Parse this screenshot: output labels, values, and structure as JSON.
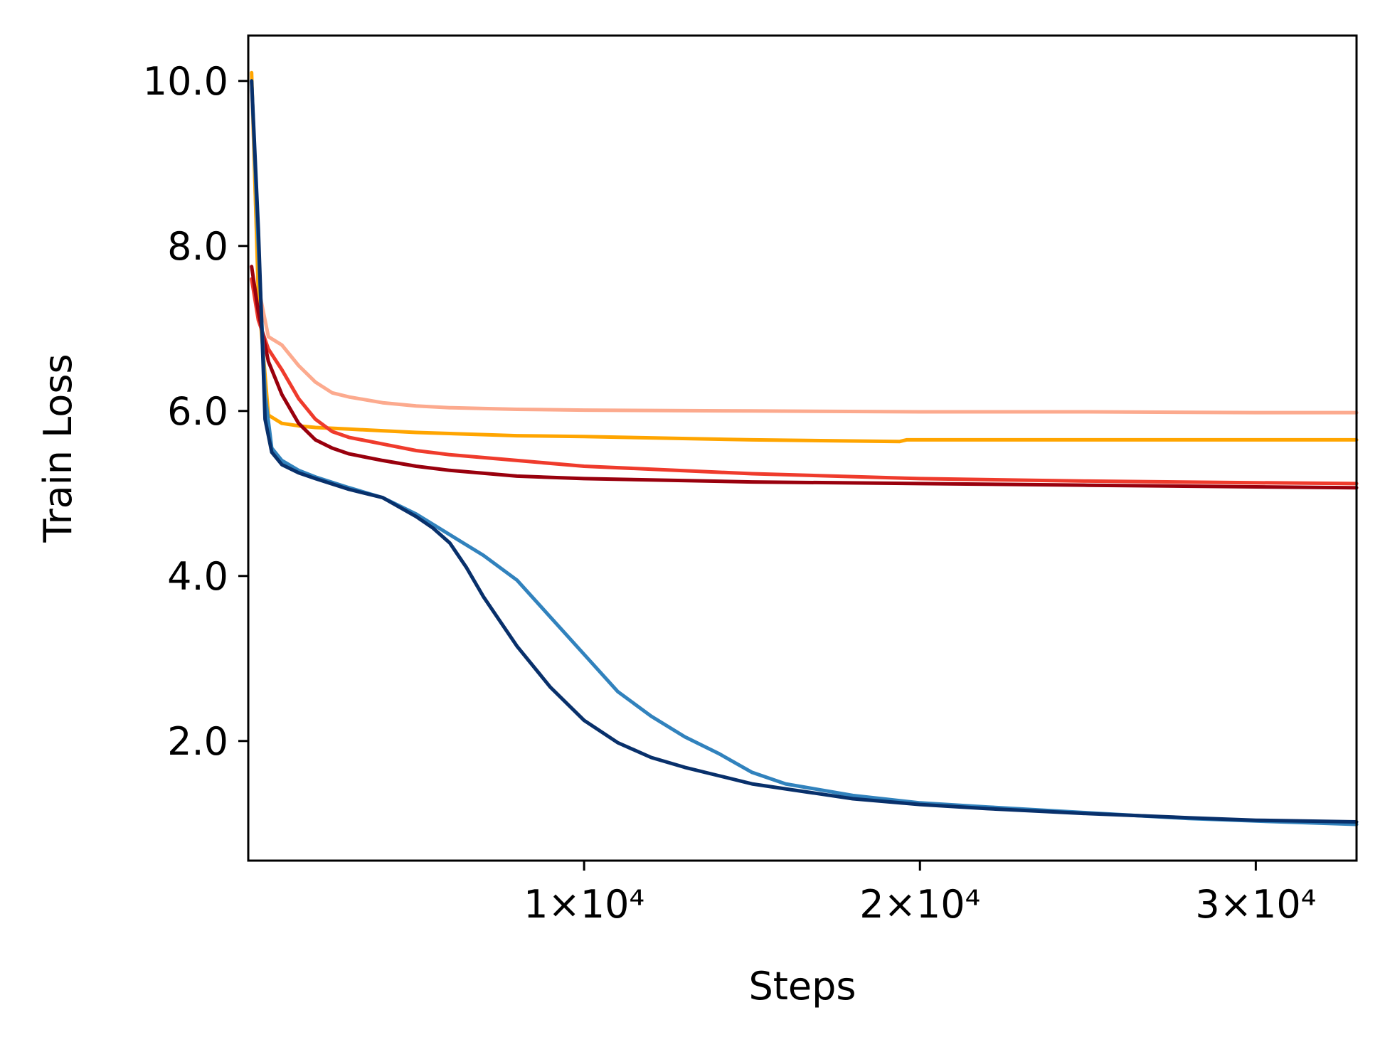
{
  "chart_data": {
    "type": "line",
    "xlabel": "Steps",
    "ylabel": "Train Loss",
    "xlim": [
      0,
      33000
    ],
    "ylim": [
      0.55,
      10.55
    ],
    "xticks": [
      {
        "value": 10000,
        "label": "1×10⁴"
      },
      {
        "value": 20000,
        "label": "2×10⁴"
      },
      {
        "value": 30000,
        "label": "3×10⁴"
      }
    ],
    "yticks": [
      {
        "value": 2.0,
        "label": "2.0"
      },
      {
        "value": 4.0,
        "label": "4.0"
      },
      {
        "value": 6.0,
        "label": "6.0"
      },
      {
        "value": 8.0,
        "label": "8.0"
      },
      {
        "value": 10.0,
        "label": "10.0"
      }
    ],
    "grid": false,
    "legend": "none",
    "series": [
      {
        "color": "#fcaa8e",
        "x": [
          100,
          300,
          600,
          1000,
          1500,
          2000,
          2500,
          3000,
          4000,
          5000,
          6000,
          8000,
          10000,
          15000,
          20000,
          25000,
          30000,
          33000
        ],
        "y": [
          10.0,
          7.5,
          6.9,
          6.8,
          6.55,
          6.35,
          6.22,
          6.17,
          6.1,
          6.06,
          6.04,
          6.02,
          6.01,
          6.0,
          5.99,
          5.99,
          5.98,
          5.98
        ]
      },
      {
        "color": "#ffa500",
        "x": [
          100,
          300,
          600,
          1000,
          1500,
          2000,
          3000,
          5000,
          8000,
          10000,
          15000,
          19400,
          19600,
          25000,
          30000,
          33000
        ],
        "y": [
          10.1,
          7.4,
          5.95,
          5.85,
          5.82,
          5.8,
          5.78,
          5.74,
          5.7,
          5.69,
          5.65,
          5.63,
          5.65,
          5.65,
          5.65,
          5.65
        ]
      },
      {
        "color": "#ef3b2c",
        "x": [
          100,
          300,
          600,
          1000,
          1500,
          2000,
          2500,
          3000,
          4000,
          5000,
          6000,
          8000,
          10000,
          15000,
          20000,
          25000,
          30000,
          33000
        ],
        "y": [
          7.6,
          7.1,
          6.75,
          6.5,
          6.15,
          5.9,
          5.75,
          5.68,
          5.6,
          5.52,
          5.47,
          5.4,
          5.33,
          5.24,
          5.18,
          5.15,
          5.13,
          5.12
        ]
      },
      {
        "color": "#99000d",
        "x": [
          100,
          300,
          600,
          1000,
          1500,
          2000,
          2500,
          3000,
          4000,
          5000,
          6000,
          8000,
          10000,
          15000,
          20000,
          25000,
          30000,
          33000
        ],
        "y": [
          7.75,
          7.2,
          6.6,
          6.2,
          5.85,
          5.65,
          5.55,
          5.48,
          5.4,
          5.33,
          5.28,
          5.21,
          5.18,
          5.14,
          5.12,
          5.1,
          5.08,
          5.07
        ]
      },
      {
        "color": "#3182bd",
        "x": [
          100,
          300,
          500,
          700,
          1000,
          1500,
          2000,
          3000,
          4000,
          5000,
          6000,
          7000,
          8000,
          9000,
          10000,
          11000,
          12000,
          13000,
          14000,
          15000,
          16000,
          18000,
          20000,
          22000,
          25000,
          28000,
          30000,
          33000
        ],
        "y": [
          10.0,
          8.0,
          6.2,
          5.55,
          5.4,
          5.28,
          5.2,
          5.07,
          4.95,
          4.75,
          4.5,
          4.25,
          3.95,
          3.5,
          3.05,
          2.6,
          2.3,
          2.05,
          1.85,
          1.62,
          1.48,
          1.34,
          1.25,
          1.2,
          1.13,
          1.06,
          1.03,
          0.99
        ]
      },
      {
        "color": "#08306b",
        "x": [
          100,
          300,
          500,
          700,
          1000,
          1500,
          2000,
          3000,
          4000,
          5000,
          5500,
          6000,
          6500,
          7000,
          7500,
          8000,
          9000,
          10000,
          11000,
          12000,
          13000,
          14000,
          15000,
          16000,
          18000,
          20000,
          22000,
          25000,
          28000,
          30000,
          33000
        ],
        "y": [
          10.0,
          8.2,
          5.9,
          5.5,
          5.35,
          5.25,
          5.18,
          5.05,
          4.95,
          4.72,
          4.58,
          4.4,
          4.1,
          3.75,
          3.45,
          3.15,
          2.65,
          2.25,
          1.98,
          1.8,
          1.68,
          1.58,
          1.48,
          1.42,
          1.3,
          1.23,
          1.18,
          1.12,
          1.07,
          1.04,
          1.02
        ]
      }
    ]
  }
}
